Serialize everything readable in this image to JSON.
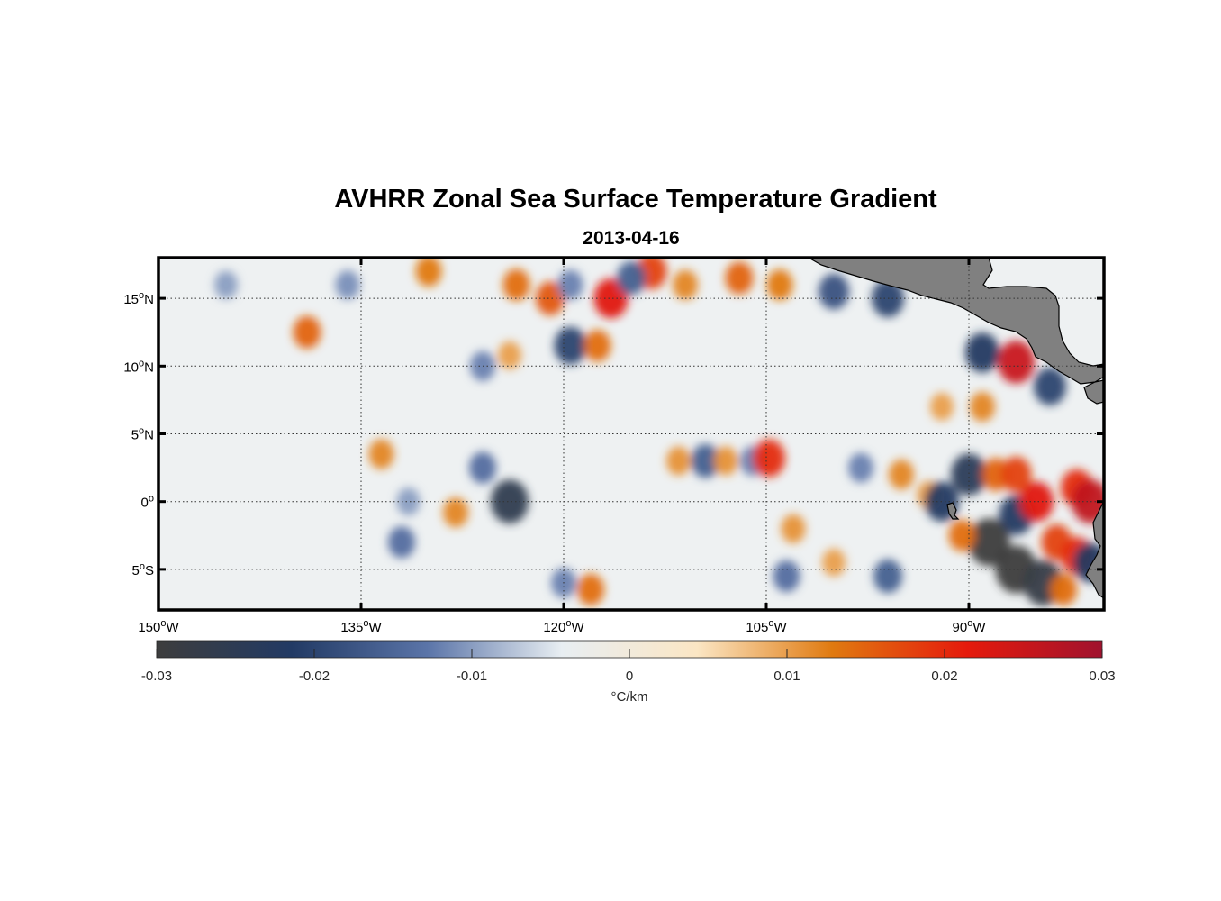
{
  "chart_data": {
    "type": "heatmap",
    "title": "AVHRR Zonal Sea Surface Temperature Gradient",
    "subtitle": "2013-04-16",
    "variable": "zonal SST gradient",
    "longitude_range": [
      -150,
      -80
    ],
    "latitude_range": [
      -8,
      18
    ],
    "x_ticks": [
      {
        "lon": -150,
        "deg": "150",
        "hem": "W"
      },
      {
        "lon": -135,
        "deg": "135",
        "hem": "W"
      },
      {
        "lon": -120,
        "deg": "120",
        "hem": "W"
      },
      {
        "lon": -105,
        "deg": "105",
        "hem": "W"
      },
      {
        "lon": -90,
        "deg": "90",
        "hem": "W"
      }
    ],
    "y_ticks": [
      {
        "lat": 15,
        "deg": "15",
        "hem": "N"
      },
      {
        "lat": 10,
        "deg": "10",
        "hem": "N"
      },
      {
        "lat": 5,
        "deg": "5",
        "hem": "N"
      },
      {
        "lat": 0,
        "deg": "0",
        "hem": ""
      },
      {
        "lat": -5,
        "deg": "5",
        "hem": "S"
      }
    ],
    "colorbar": {
      "range": [
        -0.03,
        0.03
      ],
      "ticks": [
        "-0.03",
        "-0.02",
        "-0.01",
        "0",
        "0.01",
        "0.02",
        "0.03"
      ],
      "tick_values": [
        -0.03,
        -0.02,
        -0.01,
        0,
        0.01,
        0.02,
        0.03
      ],
      "units": "°C/km",
      "colors": [
        "#3d3d3d",
        "#223a64",
        "#5a74a8",
        "#e8eef2",
        "#fbe6c4",
        "#e07a10",
        "#e51a0c",
        "#a0122e"
      ]
    },
    "features": [
      {
        "lon": -130,
        "lat": 17,
        "value": 0.013
      },
      {
        "lon": -123.5,
        "lat": 16,
        "value": 0.014
      },
      {
        "lon": -121,
        "lat": 15,
        "value": 0.016
      },
      {
        "lon": -119.5,
        "lat": 16,
        "value": -0.012
      },
      {
        "lon": -116.5,
        "lat": 15,
        "value": 0.022
      },
      {
        "lon": -113.5,
        "lat": 17,
        "value": 0.018
      },
      {
        "lon": -115,
        "lat": 16.5,
        "value": -0.016
      },
      {
        "lon": -111,
        "lat": 16,
        "value": 0.012
      },
      {
        "lon": -107,
        "lat": 16.5,
        "value": 0.015
      },
      {
        "lon": -104,
        "lat": 16,
        "value": 0.013
      },
      {
        "lon": -100,
        "lat": 15.5,
        "value": -0.018
      },
      {
        "lon": -96,
        "lat": 15,
        "value": -0.02
      },
      {
        "lon": -119.5,
        "lat": 11.5,
        "value": -0.02
      },
      {
        "lon": -117.5,
        "lat": 11.5,
        "value": 0.014
      },
      {
        "lon": -136,
        "lat": 16,
        "value": -0.011
      },
      {
        "lon": -145,
        "lat": 16,
        "value": -0.01
      },
      {
        "lon": -139,
        "lat": 12.5,
        "value": 0.015
      },
      {
        "lon": -126,
        "lat": 10,
        "value": -0.012
      },
      {
        "lon": -124,
        "lat": 10.8,
        "value": 0.01
      },
      {
        "lon": -89,
        "lat": 11,
        "value": -0.022
      },
      {
        "lon": -86.5,
        "lat": 10.3,
        "value": 0.025
      },
      {
        "lon": -84,
        "lat": 8.5,
        "value": -0.02
      },
      {
        "lon": -89,
        "lat": 7,
        "value": 0.012
      },
      {
        "lon": -92,
        "lat": 7,
        "value": 0.01
      },
      {
        "lon": -133.5,
        "lat": 3.5,
        "value": 0.012
      },
      {
        "lon": -131.5,
        "lat": 0,
        "value": -0.01
      },
      {
        "lon": -128,
        "lat": -0.8,
        "value": 0.012
      },
      {
        "lon": -126,
        "lat": 2.5,
        "value": -0.014
      },
      {
        "lon": -124,
        "lat": 0,
        "value": -0.026
      },
      {
        "lon": -109.5,
        "lat": 3,
        "value": -0.016
      },
      {
        "lon": -108,
        "lat": 3,
        "value": 0.011
      },
      {
        "lon": -106,
        "lat": 3,
        "value": -0.012
      },
      {
        "lon": -104.8,
        "lat": 3.2,
        "value": 0.02
      },
      {
        "lon": -111.5,
        "lat": 3,
        "value": 0.011
      },
      {
        "lon": -98,
        "lat": 2.5,
        "value": -0.012
      },
      {
        "lon": -95,
        "lat": 2,
        "value": 0.012
      },
      {
        "lon": -93,
        "lat": 0.5,
        "value": 0.01
      },
      {
        "lon": -92,
        "lat": 0,
        "value": -0.022
      },
      {
        "lon": -90,
        "lat": 2,
        "value": -0.024
      },
      {
        "lon": -88,
        "lat": 2,
        "value": 0.015
      },
      {
        "lon": -86.5,
        "lat": 2,
        "value": 0.018
      },
      {
        "lon": -86.5,
        "lat": -1,
        "value": -0.022
      },
      {
        "lon": -85,
        "lat": 0,
        "value": 0.022
      },
      {
        "lon": -82,
        "lat": 1,
        "value": 0.02
      },
      {
        "lon": -81,
        "lat": 0,
        "value": 0.026
      },
      {
        "lon": -88.5,
        "lat": -3,
        "value": -0.03
      },
      {
        "lon": -86.5,
        "lat": -5,
        "value": -0.03
      },
      {
        "lon": -84.5,
        "lat": -6,
        "value": -0.028
      },
      {
        "lon": -90.5,
        "lat": -2.5,
        "value": 0.014
      },
      {
        "lon": -83.5,
        "lat": -3,
        "value": 0.018
      },
      {
        "lon": -82,
        "lat": -4,
        "value": 0.02
      },
      {
        "lon": -83,
        "lat": -6.5,
        "value": 0.014
      },
      {
        "lon": -81,
        "lat": -4.5,
        "value": -0.022
      },
      {
        "lon": -103,
        "lat": -2,
        "value": 0.011
      },
      {
        "lon": -103.5,
        "lat": -5.5,
        "value": -0.014
      },
      {
        "lon": -96,
        "lat": -5.5,
        "value": -0.016
      },
      {
        "lon": -100,
        "lat": -4.5,
        "value": 0.01
      },
      {
        "lon": -132,
        "lat": -3,
        "value": -0.014
      },
      {
        "lon": -118,
        "lat": -6.5,
        "value": 0.014
      },
      {
        "lon": -120,
        "lat": -6,
        "value": -0.012
      }
    ]
  }
}
